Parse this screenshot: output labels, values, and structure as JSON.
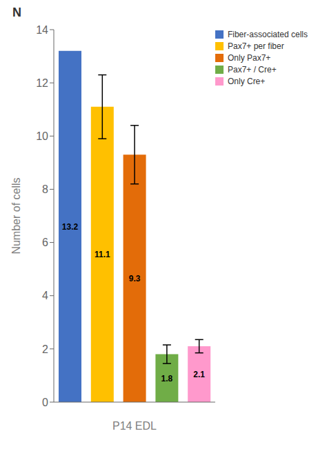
{
  "chart_data": {
    "type": "bar",
    "annotation": "N",
    "categories": [
      "Fiber-associated cells",
      "Pax7+ per fiber",
      "Only Pax7+",
      "Pax7+ / Cre+",
      "Only Cre+"
    ],
    "values": [
      13.2,
      11.1,
      9.3,
      1.8,
      2.1
    ],
    "errors": [
      0.0,
      1.2,
      1.1,
      0.35,
      0.25
    ],
    "colors": [
      "#4472c4",
      "#ffc000",
      "#e36c09",
      "#70ad47",
      "#ff99cc"
    ],
    "xlabel": "P14 EDL",
    "ylabel": "Number of cells",
    "ylim": [
      0,
      14
    ],
    "yticks": [
      0,
      2,
      4,
      6,
      8,
      10,
      12,
      14
    ],
    "legend": "upper right",
    "data_labels": true,
    "tick_labels": "y",
    "grid": false
  }
}
